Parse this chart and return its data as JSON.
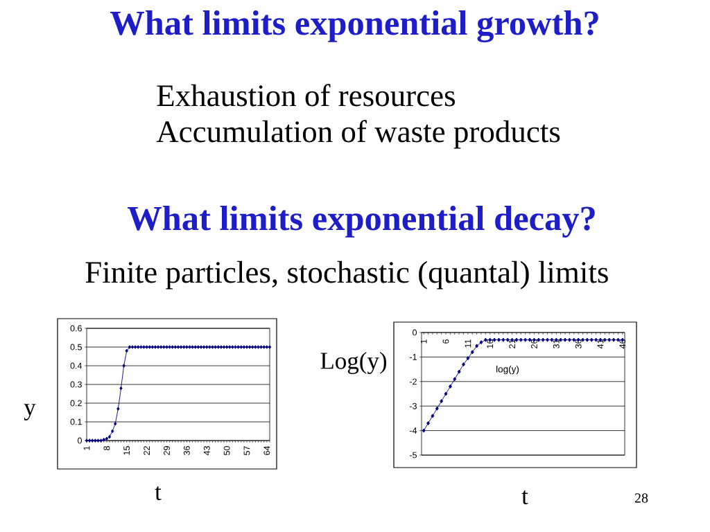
{
  "chart_data": [
    {
      "type": "line",
      "title": "What limits exponential growth?",
      "xlabel": "t",
      "ylabel": "y",
      "annotations": [
        "Exhaustion of resources",
        "Accumulation of waste products"
      ],
      "categories": [
        "1",
        null,
        null,
        null,
        null,
        null,
        null,
        "8",
        null,
        null,
        null,
        null,
        null,
        null,
        "15",
        null,
        null,
        null,
        null,
        null,
        null,
        "22",
        null,
        null,
        null,
        null,
        null,
        null,
        "29",
        null,
        null,
        null,
        null,
        null,
        null,
        "36",
        null,
        null,
        null,
        null,
        null,
        null,
        "43",
        null,
        null,
        null,
        null,
        null,
        null,
        "50",
        null,
        null,
        null,
        null,
        null,
        null,
        "57",
        null,
        null,
        null,
        null,
        null,
        null,
        "64",
        null
      ],
      "values": [
        0,
        0,
        0,
        0,
        0,
        0,
        0.005,
        0.01,
        0.02,
        0.05,
        0.09,
        0.17,
        0.28,
        0.4,
        0.48,
        0.5,
        0.5,
        0.5,
        0.5,
        0.5,
        0.5,
        0.5,
        0.5,
        0.5,
        0.5,
        0.5,
        0.5,
        0.5,
        0.5,
        0.5,
        0.5,
        0.5,
        0.5,
        0.5,
        0.5,
        0.5,
        0.5,
        0.5,
        0.5,
        0.5,
        0.5,
        0.5,
        0.5,
        0.5,
        0.5,
        0.5,
        0.5,
        0.5,
        0.5,
        0.5,
        0.5,
        0.5,
        0.5,
        0.5,
        0.5,
        0.5,
        0.5,
        0.5,
        0.5,
        0.5,
        0.5,
        0.5,
        0.5,
        0.5,
        0.5
      ],
      "color": "#000080",
      "marker": "diamond",
      "grid": "y",
      "ylim": [
        0,
        0.6
      ],
      "yticks": [
        0,
        0.1,
        0.2,
        0.3,
        0.4,
        0.5,
        0.6
      ]
    },
    {
      "type": "line",
      "title": "What limits exponential decay?",
      "subtitle": "Finite particles, stochastic (quantal) limits",
      "xlabel": "t",
      "ylabel": "Log(y)",
      "annotations": [
        "log(y)",
        "28"
      ],
      "categories": [
        "1",
        null,
        null,
        null,
        null,
        "6",
        null,
        null,
        null,
        null,
        "11",
        null,
        null,
        null,
        null,
        "16",
        null,
        null,
        null,
        null,
        "21",
        null,
        null,
        null,
        null,
        "26",
        null,
        null,
        null,
        null,
        "31",
        null,
        null,
        null,
        null,
        "36",
        null,
        null,
        null,
        null,
        "41",
        null,
        null,
        null,
        null,
        "46"
      ],
      "values": [
        -4,
        -3.7,
        -3.4,
        -3.1,
        -2.8,
        -2.5,
        -2.2,
        -1.9,
        -1.6,
        -1.3,
        -1.05,
        -0.8,
        -0.55,
        -0.4,
        -0.3,
        -0.3,
        -0.3,
        -0.3,
        -0.3,
        -0.3,
        -0.3,
        -0.3,
        -0.3,
        -0.3,
        -0.3,
        -0.3,
        -0.3,
        -0.3,
        -0.3,
        -0.3,
        -0.3,
        -0.3,
        -0.3,
        -0.3,
        -0.3,
        -0.3,
        -0.3,
        -0.3,
        -0.3,
        -0.3,
        -0.3,
        -0.3,
        -0.3,
        -0.3,
        -0.3,
        -0.3
      ],
      "color": "#000080",
      "marker": "diamond",
      "grid": "y",
      "ylim": [
        -5,
        0
      ],
      "yticks": [
        -5,
        -4,
        -3,
        -2,
        -1,
        0
      ]
    }
  ]
}
